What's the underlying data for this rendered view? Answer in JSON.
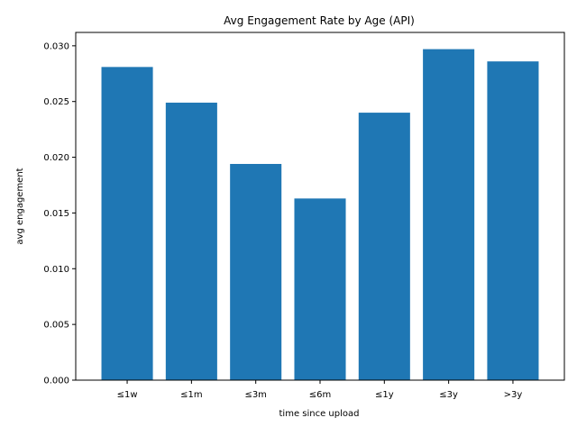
{
  "chart_data": {
    "type": "bar",
    "title": "Avg Engagement Rate by Age (API)",
    "xlabel": "time since upload",
    "ylabel": "avg engagement",
    "categories": [
      "≤1w",
      "≤1m",
      "≤3m",
      "≤6m",
      "≤1y",
      "≤3y",
      ">3y"
    ],
    "values": [
      0.0281,
      0.0249,
      0.0194,
      0.0163,
      0.024,
      0.0297,
      0.0286
    ],
    "ylim": [
      0,
      0.0312
    ],
    "yticks": [
      "0.000",
      "0.005",
      "0.010",
      "0.015",
      "0.020",
      "0.025",
      "0.030"
    ],
    "bar_color": "#1f77b4",
    "grid": false,
    "legend": "none"
  }
}
